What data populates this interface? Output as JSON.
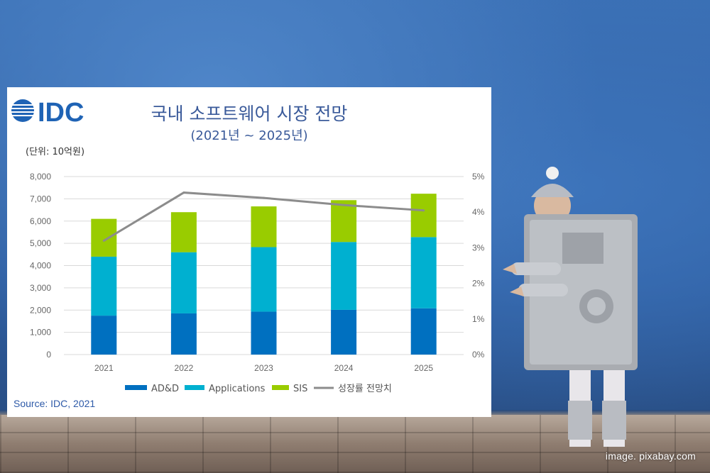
{
  "credit": "image. pixabay.com",
  "chart_panel": {
    "unit_label": "(단위: 10억원)",
    "source": "Source: IDC, 2021",
    "logo_text": "IDC"
  },
  "colors": {
    "adnd": "#0070c0",
    "applications": "#00b0d0",
    "sis": "#99cc00",
    "growth": "#8c8c8c",
    "title": "#3a5a9a"
  },
  "chart_data": {
    "type": "bar",
    "stacked": true,
    "title": "국내 소프트웨어 시장 전망",
    "subtitle": "(2021년 ~ 2025년)",
    "categories": [
      "2021",
      "2022",
      "2023",
      "2024",
      "2025"
    ],
    "series": [
      {
        "name": "AD&D",
        "values": [
          1750,
          1850,
          1930,
          2010,
          2080
        ]
      },
      {
        "name": "Applications",
        "values": [
          2650,
          2750,
          2900,
          3050,
          3200
        ]
      },
      {
        "name": "SIS",
        "values": [
          1700,
          1800,
          1830,
          1880,
          1950
        ]
      }
    ],
    "line_series": {
      "name": "성장률 전망치",
      "axis": "right",
      "values": [
        3.2,
        4.55,
        4.4,
        4.2,
        4.05
      ]
    },
    "ylim": [
      0,
      8000
    ],
    "yticks": [
      "0",
      "1,000",
      "2,000",
      "3,000",
      "4,000",
      "5,000",
      "6,000",
      "7,000",
      "8,000"
    ],
    "y2lim": [
      0,
      5
    ],
    "y2ticks": [
      "0%",
      "1%",
      "2%",
      "3%",
      "4%",
      "5%"
    ],
    "grid": true,
    "legend_position": "bottom"
  }
}
